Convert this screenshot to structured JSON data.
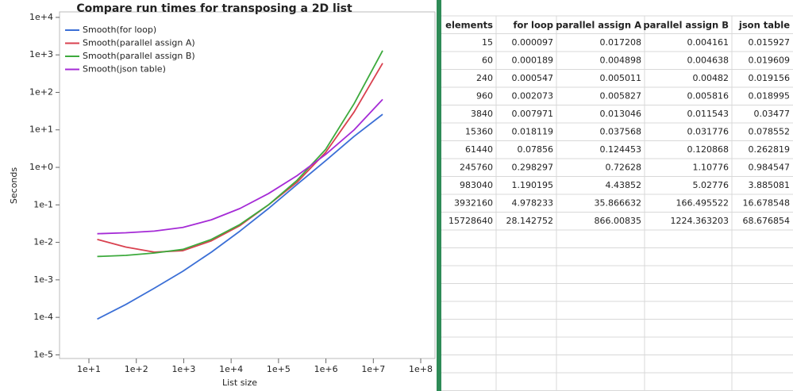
{
  "chart_data": {
    "type": "line",
    "title": "Compare run times for transposing a 2D list",
    "x_label": "List size",
    "y_label": "Seconds",
    "xscale": "log",
    "yscale": "log",
    "legend": "upper-left",
    "x": [
      15,
      60,
      240,
      960,
      3840,
      15360,
      61440,
      245760,
      983040,
      3932160,
      15728640
    ],
    "series": [
      {
        "name": "Smooth(for loop)",
        "color": "#3b6fd6",
        "values": [
          9e-05,
          0.00022,
          0.0006,
          0.0017,
          0.0055,
          0.02,
          0.08,
          0.35,
          1.5,
          6.7,
          26
        ]
      },
      {
        "name": "Smooth(parallel assign A)",
        "color": "#d9414f",
        "values": [
          0.012,
          0.0075,
          0.0055,
          0.006,
          0.011,
          0.028,
          0.1,
          0.4,
          2.5,
          30,
          600
        ]
      },
      {
        "name": "Smooth(parallel assign B)",
        "color": "#3daa3d",
        "values": [
          0.0042,
          0.0045,
          0.0052,
          0.0065,
          0.012,
          0.03,
          0.1,
          0.45,
          3,
          50,
          1300
        ]
      },
      {
        "name": "Smooth(json table)",
        "color": "#a52bd6",
        "values": [
          0.017,
          0.018,
          0.02,
          0.025,
          0.04,
          0.08,
          0.2,
          0.6,
          2.2,
          10,
          65
        ]
      }
    ],
    "xlim": [
      2.4,
      200000000
    ],
    "xticks": [
      {
        "value": 10,
        "label": "1e+1"
      },
      {
        "value": 100,
        "label": "1e+2"
      },
      {
        "value": 1000,
        "label": "1e+3"
      },
      {
        "value": 10000,
        "label": "1e+4"
      },
      {
        "value": 100000,
        "label": "1e+5"
      },
      {
        "value": 1000000,
        "label": "1e+6"
      },
      {
        "value": 10000000,
        "label": "1e+7"
      },
      {
        "value": 100000000,
        "label": "1e+8"
      }
    ],
    "ylim": [
      8e-06,
      14000
    ],
    "yticks": [
      {
        "value": 1e-05,
        "label": "1e-5"
      },
      {
        "value": 0.0001,
        "label": "1e-4"
      },
      {
        "value": 0.001,
        "label": "1e-3"
      },
      {
        "value": 0.01,
        "label": "1e-2"
      },
      {
        "value": 0.1,
        "label": "1e-1"
      },
      {
        "value": 1,
        "label": "1e+0"
      },
      {
        "value": 10,
        "label": "1e+1"
      },
      {
        "value": 100,
        "label": "1e+2"
      },
      {
        "value": 1000,
        "label": "1e+3"
      },
      {
        "value": 10000,
        "label": "1e+4"
      }
    ]
  },
  "table": {
    "header": [
      "elements",
      "for loop",
      "parallel assign A",
      "parallel assign B",
      "json table"
    ],
    "rows": [
      [
        "15",
        "0.000097",
        "0.017208",
        "0.004161",
        "0.015927"
      ],
      [
        "60",
        "0.000189",
        "0.004898",
        "0.004638",
        "0.019609"
      ],
      [
        "240",
        "0.000547",
        "0.005011",
        "0.00482",
        "0.019156"
      ],
      [
        "960",
        "0.002073",
        "0.005827",
        "0.005816",
        "0.018995"
      ],
      [
        "3840",
        "0.007971",
        "0.013046",
        "0.011543",
        "0.03477"
      ],
      [
        "15360",
        "0.018119",
        "0.037568",
        "0.031776",
        "0.078552"
      ],
      [
        "61440",
        "0.07856",
        "0.124453",
        "0.120868",
        "0.262819"
      ],
      [
        "245760",
        "0.298297",
        "0.72628",
        "1.10776",
        "0.984547"
      ],
      [
        "983040",
        "1.190195",
        "4.43852",
        "5.02776",
        "3.885081"
      ],
      [
        "3932160",
        "4.978233",
        "35.866632",
        "166.495522",
        "16.678548"
      ],
      [
        "15728640",
        "28.142752",
        "866.00835",
        "1224.363203",
        "68.676854"
      ]
    ]
  }
}
